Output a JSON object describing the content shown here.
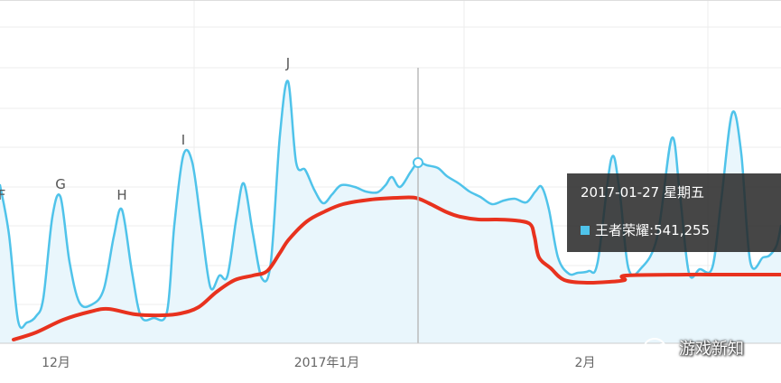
{
  "chart_data": {
    "type": "line",
    "x_ticks": [
      "12月",
      "2017年1月",
      "2月"
    ],
    "series": [
      {
        "name": "王者荣耀",
        "color": "#4fc3ea",
        "area": true,
        "points": [
          [
            0,
            205
          ],
          [
            10,
            260
          ],
          [
            20,
            355
          ],
          [
            30,
            357
          ],
          [
            40,
            350
          ],
          [
            48,
            330
          ],
          [
            58,
            240
          ],
          [
            67,
            218
          ],
          [
            77,
            290
          ],
          [
            88,
            335
          ],
          [
            102,
            337
          ],
          [
            115,
            320
          ],
          [
            126,
            262
          ],
          [
            135,
            232
          ],
          [
            146,
            300
          ],
          [
            156,
            350
          ],
          [
            170,
            352
          ],
          [
            185,
            345
          ],
          [
            193,
            250
          ],
          [
            203,
            172
          ],
          [
            213,
            180
          ],
          [
            223,
            250
          ],
          [
            233,
            318
          ],
          [
            243,
            305
          ],
          [
            252,
            305
          ],
          [
            262,
            240
          ],
          [
            270,
            203
          ],
          [
            280,
            258
          ],
          [
            290,
            308
          ],
          [
            300,
            290
          ],
          [
            310,
            150
          ],
          [
            319,
            90
          ],
          [
            328,
            180
          ],
          [
            338,
            188
          ],
          [
            348,
            210
          ],
          [
            358,
            225
          ],
          [
            368,
            215
          ],
          [
            378,
            205
          ],
          [
            393,
            207
          ],
          [
            405,
            212
          ],
          [
            418,
            213
          ],
          [
            427,
            205
          ],
          [
            434,
            196
          ],
          [
            443,
            207
          ],
          [
            455,
            190
          ],
          [
            463,
            180
          ],
          [
            473,
            183
          ],
          [
            485,
            186
          ],
          [
            495,
            195
          ],
          [
            508,
            203
          ],
          [
            520,
            212
          ],
          [
            532,
            218
          ],
          [
            545,
            226
          ],
          [
            558,
            222
          ],
          [
            570,
            220
          ],
          [
            583,
            224
          ],
          [
            593,
            212
          ],
          [
            600,
            207
          ],
          [
            608,
            232
          ],
          [
            618,
            285
          ],
          [
            630,
            303
          ],
          [
            640,
            302
          ],
          [
            652,
            300
          ],
          [
            662,
            290
          ],
          [
            677,
            176
          ],
          [
            686,
            210
          ],
          [
            696,
            297
          ],
          [
            710,
            297
          ],
          [
            728,
            262
          ],
          [
            744,
            153
          ],
          [
            753,
            215
          ],
          [
            763,
            302
          ],
          [
            775,
            298
          ],
          [
            789,
            296
          ],
          [
            799,
            220
          ],
          [
            811,
            125
          ],
          [
            821,
            170
          ],
          [
            831,
            290
          ],
          [
            845,
            285
          ],
          [
            852,
            283
          ],
          [
            860,
            272
          ],
          [
            865,
            250
          ]
        ]
      },
      {
        "name": "",
        "color": "#e8321e",
        "area": false,
        "points": [
          [
            15,
            376
          ],
          [
            40,
            368
          ],
          [
            70,
            354
          ],
          [
            100,
            345
          ],
          [
            120,
            342
          ],
          [
            150,
            348
          ],
          [
            180,
            349
          ],
          [
            200,
            347
          ],
          [
            220,
            340
          ],
          [
            240,
            323
          ],
          [
            260,
            310
          ],
          [
            280,
            305
          ],
          [
            296,
            300
          ],
          [
            310,
            280
          ],
          [
            320,
            265
          ],
          [
            340,
            245
          ],
          [
            360,
            234
          ],
          [
            380,
            226
          ],
          [
            410,
            221
          ],
          [
            440,
            219
          ],
          [
            460,
            219
          ],
          [
            475,
            225
          ],
          [
            495,
            235
          ],
          [
            510,
            240
          ],
          [
            530,
            243
          ],
          [
            550,
            243
          ],
          [
            570,
            244
          ],
          [
            587,
            248
          ],
          [
            592,
            262
          ],
          [
            597,
            285
          ],
          [
            610,
            297
          ],
          [
            625,
            310
          ],
          [
            650,
            313
          ],
          [
            675,
            312
          ],
          [
            692,
            310
          ],
          [
            693,
            305
          ],
          [
            760,
            304
          ],
          [
            800,
            304
          ],
          [
            865,
            304
          ]
        ]
      }
    ],
    "annotations": [
      "F",
      "G",
      "H",
      "I",
      "J"
    ],
    "tooltip": {
      "date": "2017-01-27 星期五",
      "series_label": "王者荣耀:",
      "value": "541,255"
    },
    "grid": true
  },
  "watermark": {
    "text": "游戏新知"
  }
}
